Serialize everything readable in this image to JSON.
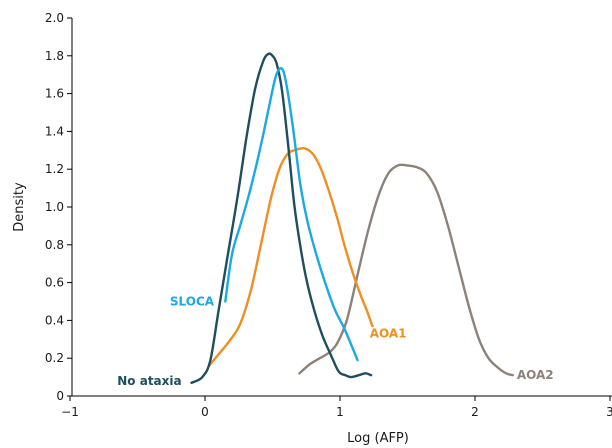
{
  "chart_data": {
    "type": "line",
    "title": "",
    "xlabel": "Log (AFP)",
    "ylabel": "Density",
    "xlim": [
      -1,
      3
    ],
    "ylim": [
      0,
      2.0
    ],
    "x_ticks": [
      -1,
      0,
      1,
      2,
      3
    ],
    "x_tick_labels": [
      "−1",
      "0",
      "1",
      "2",
      "3"
    ],
    "y_ticks": [
      0,
      0.2,
      0.4,
      0.6,
      0.8,
      1.0,
      1.2,
      1.4,
      1.6,
      1.8,
      2.0
    ],
    "y_tick_labels": [
      "0",
      "0.2",
      "0.4",
      "0.6",
      "0.8",
      "1.0",
      "1.2",
      "1.4",
      "1.6",
      "1.8",
      "2.0"
    ],
    "grid": false,
    "legend": "inline labels",
    "series": [
      {
        "name": "No ataxia",
        "color": "#1f4e5f",
        "x": [
          -0.1,
          -0.02,
          0.04,
          0.1,
          0.17,
          0.24,
          0.31,
          0.37,
          0.43,
          0.47,
          0.5,
          0.53,
          0.57,
          0.62,
          0.66,
          0.7,
          0.75,
          0.81,
          0.87,
          0.93,
          0.99,
          1.04,
          1.08,
          1.14,
          1.19,
          1.23
        ],
        "y": [
          0.07,
          0.1,
          0.19,
          0.45,
          0.75,
          1.05,
          1.38,
          1.62,
          1.77,
          1.81,
          1.8,
          1.76,
          1.62,
          1.3,
          1.02,
          0.82,
          0.62,
          0.45,
          0.32,
          0.22,
          0.13,
          0.11,
          0.1,
          0.11,
          0.12,
          0.11
        ]
      },
      {
        "name": "SLOCA",
        "color": "#1ba9e1",
        "x": [
          0.15,
          0.2,
          0.26,
          0.32,
          0.38,
          0.43,
          0.48,
          0.52,
          0.55,
          0.58,
          0.61,
          0.64,
          0.67,
          0.71,
          0.76,
          0.82,
          0.89,
          0.96,
          1.03,
          1.09,
          1.13
        ],
        "y": [
          0.5,
          0.75,
          0.9,
          1.05,
          1.22,
          1.38,
          1.55,
          1.68,
          1.73,
          1.72,
          1.62,
          1.48,
          1.32,
          1.1,
          0.92,
          0.76,
          0.6,
          0.46,
          0.36,
          0.26,
          0.19
        ]
      },
      {
        "name": "AOA1",
        "color": "#ef8f21",
        "x": [
          0.03,
          0.1,
          0.18,
          0.26,
          0.34,
          0.42,
          0.49,
          0.55,
          0.61,
          0.66,
          0.71,
          0.74,
          0.77,
          0.81,
          0.86,
          0.92,
          0.98,
          1.04,
          1.1,
          1.16,
          1.2,
          1.24
        ],
        "y": [
          0.16,
          0.22,
          0.29,
          0.38,
          0.56,
          0.82,
          1.05,
          1.2,
          1.28,
          1.3,
          1.31,
          1.31,
          1.3,
          1.27,
          1.2,
          1.08,
          0.94,
          0.78,
          0.64,
          0.52,
          0.45,
          0.37
        ]
      },
      {
        "name": "AOA2",
        "color": "#8c8278",
        "x": [
          0.7,
          0.78,
          0.85,
          0.92,
          0.98,
          1.05,
          1.13,
          1.21,
          1.29,
          1.36,
          1.43,
          1.5,
          1.57,
          1.64,
          1.72,
          1.8,
          1.88,
          1.96,
          2.03,
          2.1,
          2.17,
          2.23,
          2.28
        ],
        "y": [
          0.12,
          0.17,
          0.2,
          0.23,
          0.28,
          0.4,
          0.64,
          0.88,
          1.07,
          1.18,
          1.22,
          1.22,
          1.21,
          1.18,
          1.08,
          0.9,
          0.68,
          0.46,
          0.3,
          0.2,
          0.15,
          0.12,
          0.11
        ]
      }
    ],
    "annotations": [
      {
        "text": "No ataxia",
        "x": -0.65,
        "y": 0.08,
        "series": "No ataxia"
      },
      {
        "text": "SLOCA",
        "x": -0.26,
        "y": 0.5,
        "series": "SLOCA"
      },
      {
        "text": "AOA1",
        "x": 1.22,
        "y": 0.33,
        "series": "AOA1"
      },
      {
        "text": "AOA2",
        "x": 2.31,
        "y": 0.11,
        "series": "AOA2"
      }
    ]
  }
}
